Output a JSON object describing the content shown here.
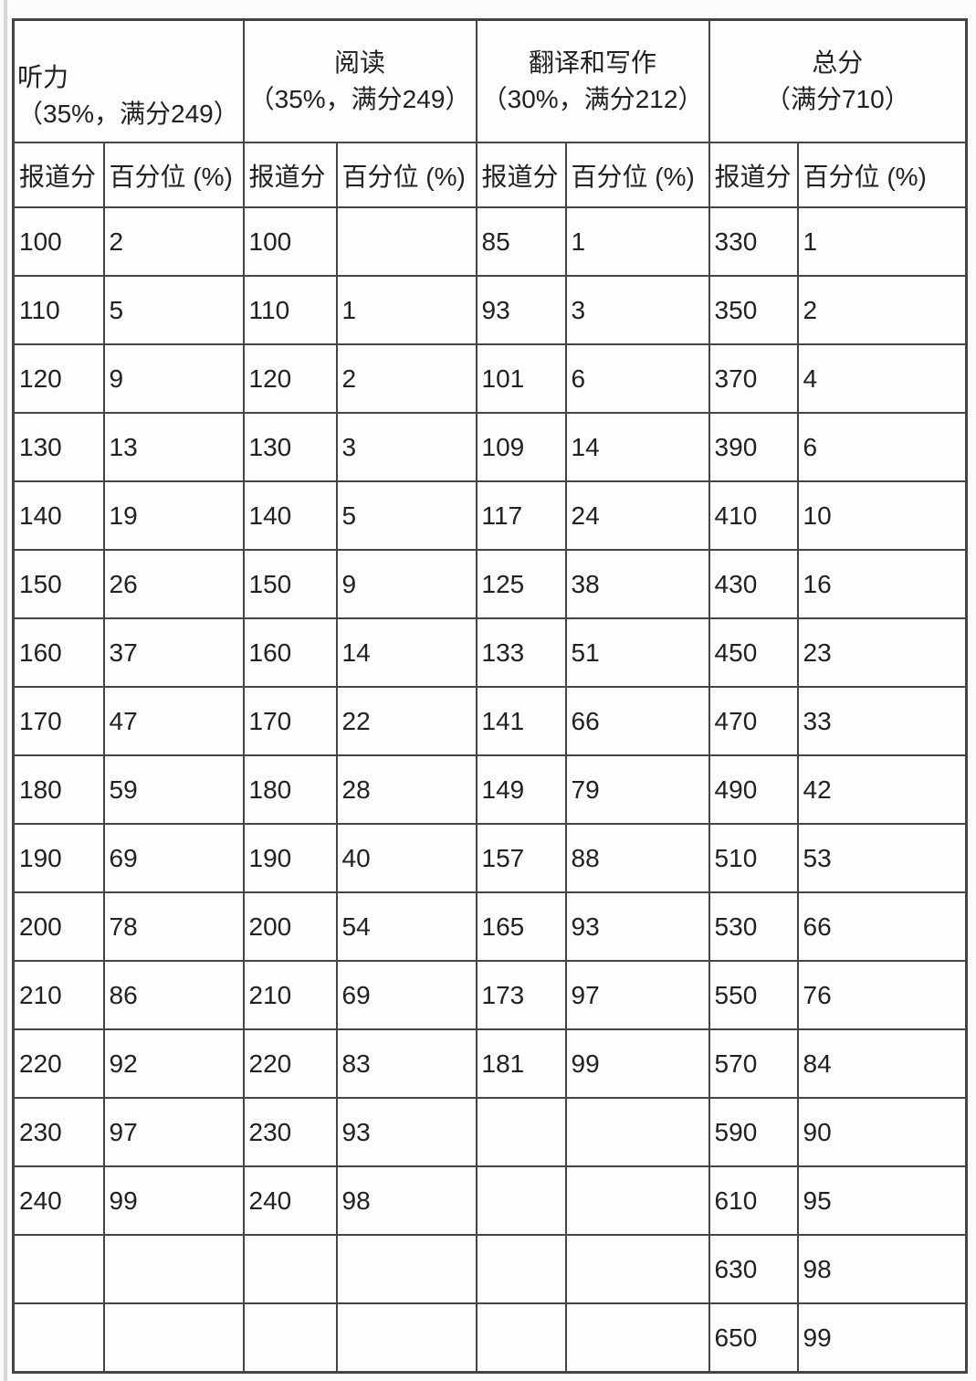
{
  "page": {
    "background_color": "#fbfbfb",
    "border_color": "#454545",
    "text_color": "#212121",
    "left_strip_color": "#d6d6d6"
  },
  "table": {
    "groups": [
      {
        "title": "听力",
        "subtitle": "（35%，满分249）"
      },
      {
        "title": "阅读",
        "subtitle": "（35%，满分249）"
      },
      {
        "title": "翻译和写作",
        "subtitle": "（30%，满分212）"
      },
      {
        "title": "总分",
        "subtitle": "（满分710）"
      }
    ],
    "sub_headers": [
      "报道分",
      "百分位 (%)"
    ],
    "rows": [
      [
        "100",
        "2",
        "100",
        "",
        "85",
        "1",
        "330",
        "1"
      ],
      [
        "110",
        "5",
        "110",
        "1",
        "93",
        "3",
        "350",
        "2"
      ],
      [
        "120",
        "9",
        "120",
        "2",
        "101",
        "6",
        "370",
        "4"
      ],
      [
        "130",
        "13",
        "130",
        "3",
        "109",
        "14",
        "390",
        "6"
      ],
      [
        "140",
        "19",
        "140",
        "5",
        "117",
        "24",
        "410",
        "10"
      ],
      [
        "150",
        "26",
        "150",
        "9",
        "125",
        "38",
        "430",
        "16"
      ],
      [
        "160",
        "37",
        "160",
        "14",
        "133",
        "51",
        "450",
        "23"
      ],
      [
        "170",
        "47",
        "170",
        "22",
        "141",
        "66",
        "470",
        "33"
      ],
      [
        "180",
        "59",
        "180",
        "28",
        "149",
        "79",
        "490",
        "42"
      ],
      [
        "190",
        "69",
        "190",
        "40",
        "157",
        "88",
        "510",
        "53"
      ],
      [
        "200",
        "78",
        "200",
        "54",
        "165",
        "93",
        "530",
        "66"
      ],
      [
        "210",
        "86",
        "210",
        "69",
        "173",
        "97",
        "550",
        "76"
      ],
      [
        "220",
        "92",
        "220",
        "83",
        "181",
        "99",
        "570",
        "84"
      ],
      [
        "230",
        "97",
        "230",
        "93",
        "",
        "",
        "590",
        "90"
      ],
      [
        "240",
        "99",
        "240",
        "98",
        "",
        "",
        "610",
        "95"
      ],
      [
        "",
        "",
        "",
        "",
        "",
        "",
        "630",
        "98"
      ],
      [
        "",
        "",
        "",
        "",
        "",
        "",
        "650",
        "99"
      ]
    ]
  }
}
